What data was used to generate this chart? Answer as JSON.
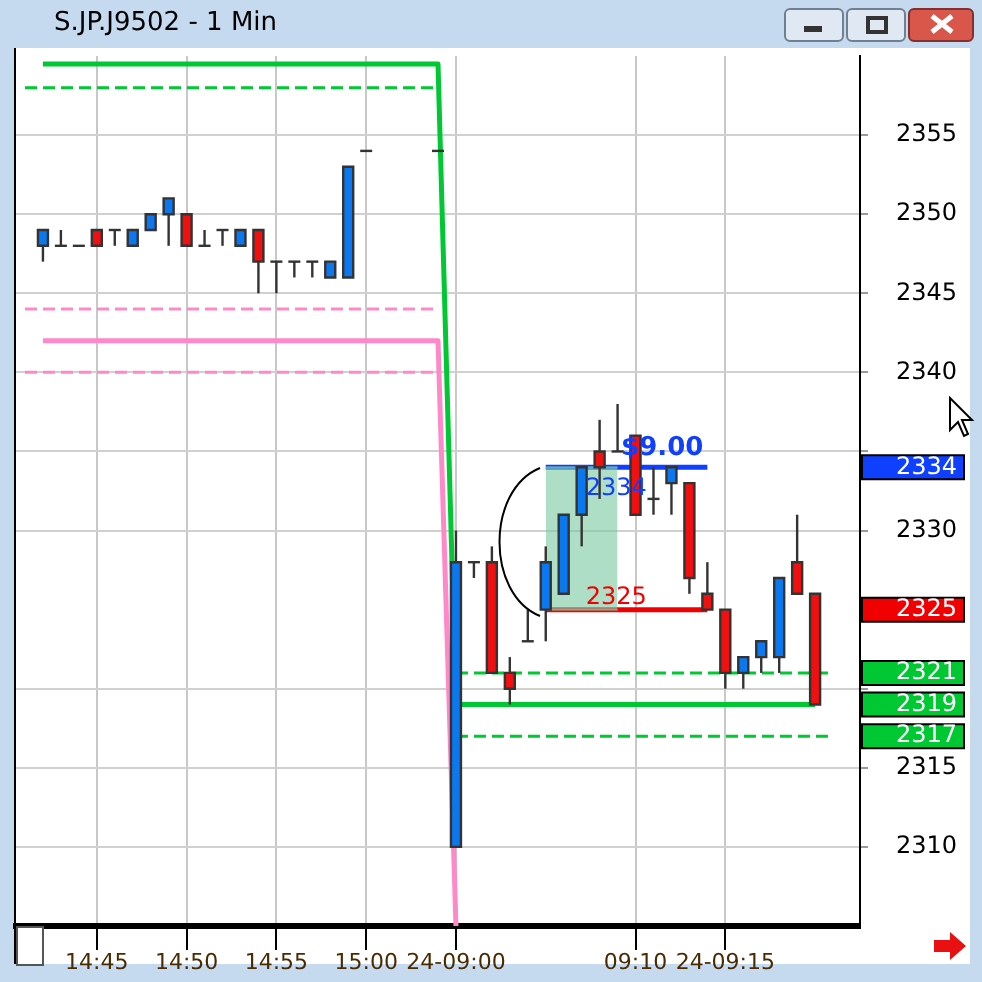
{
  "chart_data": {
    "type": "candlestick",
    "title": "S.JP.J9502 - 1 Min",
    "categories": [
      null,
      null,
      null,
      null,
      "14:45",
      null,
      null,
      null,
      null,
      "14:50",
      null,
      null,
      null,
      null,
      "14:55",
      null,
      null,
      null,
      null,
      "15:00",
      null,
      null,
      null,
      null,
      "24-09:00",
      null,
      null,
      null,
      null,
      null,
      null,
      null,
      null,
      null,
      "09:10",
      null,
      null,
      null,
      null,
      "24-09:15",
      null,
      null,
      null,
      null,
      null,
      null,
      null
    ],
    "ohlc": [
      null,
      [
        2348,
        2349,
        2347,
        2349
      ],
      [
        2348,
        2349,
        2348,
        2348
      ],
      [
        2348,
        2348,
        2348,
        2348
      ],
      [
        2349,
        2349,
        2348,
        2348
      ],
      [
        2349,
        2349,
        2348,
        2349
      ],
      [
        2348,
        2349,
        2348,
        2349
      ],
      [
        2349,
        2350,
        2349,
        2350
      ],
      [
        2350,
        2351,
        2348,
        2351
      ],
      [
        2350,
        2350,
        2348,
        2348
      ],
      [
        2348,
        2349,
        2348,
        2348
      ],
      [
        2349,
        2349,
        2348,
        2349
      ],
      [
        2348,
        2349,
        2348,
        2349
      ],
      [
        2349,
        2349,
        2345,
        2347
      ],
      [
        2347,
        2347,
        2345,
        2347
      ],
      [
        2347,
        2347,
        2346,
        2347
      ],
      [
        2347,
        2347,
        2346,
        2347
      ],
      [
        2346,
        2347,
        2346,
        2347
      ],
      [
        2346,
        2353,
        2346,
        2353
      ],
      [
        2354,
        2354,
        2354,
        2354
      ],
      null,
      null,
      null,
      [
        2354,
        2354,
        2354,
        2354
      ],
      [
        2310,
        2330,
        2310,
        2328
      ],
      [
        2328,
        2328,
        2327,
        2328
      ],
      [
        2328,
        2329,
        2321,
        2321
      ],
      [
        2321,
        2322,
        2319,
        2320
      ],
      [
        2323,
        2325,
        2323,
        2323
      ],
      [
        2325,
        2329,
        2323,
        2328
      ],
      [
        2326,
        2331,
        2326,
        2331
      ],
      [
        2331,
        2334,
        2329,
        2334
      ],
      [
        2335,
        2337,
        2332,
        2334
      ],
      [
        2335,
        2338,
        2335,
        2335
      ],
      [
        2336,
        2336,
        2331,
        2331
      ],
      [
        2332,
        2334,
        2331,
        2332
      ],
      [
        2333,
        2334,
        2331,
        2334
      ],
      [
        2333,
        2333,
        2326,
        2327
      ],
      [
        2326,
        2328,
        2325,
        2325
      ],
      [
        2325,
        2325,
        2320,
        2321
      ],
      [
        2321,
        2322,
        2320,
        2322
      ],
      [
        2322,
        2323,
        2321,
        2323
      ],
      [
        2322,
        2327,
        2321,
        2327
      ],
      [
        2328,
        2331,
        2326,
        2326
      ],
      [
        2326,
        2326,
        2319,
        2319
      ],
      null,
      null
    ],
    "colors": [
      null,
      "#0a78f0",
      "#333333",
      "#333333",
      "#f01010",
      "#333333",
      "#0a78f0",
      "#0a78f0",
      "#0a78f0",
      "#f01010",
      "#333333",
      "#333333",
      "#0a78f0",
      "#f01010",
      "#333333",
      "#333333",
      "#333333",
      "#0a78f0",
      "#0a78f0",
      "#333333",
      null,
      null,
      null,
      "#333333",
      "#0a78f0",
      "#333333",
      "#f01010",
      "#f01010",
      "#333333",
      "#0a78f0",
      "#0a78f0",
      "#0a78f0",
      "#f01010",
      "#333333",
      "#f01010",
      "#333333",
      "#0a78f0",
      "#f01010",
      "#f01010",
      "#f01010",
      "#0a78f0",
      "#0a78f0",
      "#0a78f0",
      "#f01010",
      "#f01010",
      null,
      null
    ],
    "series": [
      {
        "type": "line",
        "color": "#00c832",
        "line_style": "solid",
        "values": [
          null,
          2359.5,
          2359.5,
          2359.5,
          2359.5,
          2359.5,
          2359.5,
          2359.5,
          2359.5,
          2359.5,
          2359.5,
          2359.5,
          2359.5,
          2359.5,
          2359.5,
          2359.5,
          2359.5,
          2359.5,
          2359.5,
          2359.5,
          2359.5,
          2359.5,
          2359.5,
          2359.5,
          2319,
          2319,
          2319,
          2319,
          2319,
          2319,
          2319,
          2319,
          2319,
          2319,
          2319,
          2319,
          2319,
          2319,
          2319,
          2319,
          2319,
          2319,
          2319,
          2319,
          2319,
          null,
          null
        ]
      },
      {
        "type": "line",
        "color": "#00c832",
        "line_style": "dashed",
        "values": [
          2358,
          2358,
          2358,
          2358,
          2358,
          2358,
          2358,
          2358,
          2358,
          2358,
          2358,
          2358,
          2358,
          2358,
          2358,
          2358,
          2358,
          2358,
          2358,
          2358,
          2358,
          2358,
          2358,
          2358,
          null,
          null,
          null,
          null,
          null,
          null,
          null,
          null,
          null,
          null,
          null,
          null,
          null,
          null,
          null,
          null,
          null,
          null,
          null,
          null,
          null,
          null,
          null
        ]
      },
      {
        "type": "line",
        "color": "#00c832",
        "line_style": "dashed",
        "values": [
          null,
          null,
          null,
          null,
          null,
          null,
          null,
          null,
          null,
          null,
          null,
          null,
          null,
          null,
          null,
          null,
          null,
          null,
          null,
          null,
          null,
          null,
          null,
          null,
          2321,
          2321,
          2321,
          2321,
          2321,
          2321,
          2321,
          2321,
          2321,
          2321,
          2321,
          2321,
          2321,
          2321,
          2321,
          2321,
          2321,
          2321,
          2321,
          2321,
          2321,
          2321,
          null
        ]
      },
      {
        "type": "line",
        "color": "#00c832",
        "line_style": "dashed",
        "values": [
          null,
          null,
          null,
          null,
          null,
          null,
          null,
          null,
          null,
          null,
          null,
          null,
          null,
          null,
          null,
          null,
          null,
          null,
          null,
          null,
          null,
          null,
          null,
          null,
          2317,
          2317,
          2317,
          2317,
          2317,
          2317,
          2317,
          2317,
          2317,
          2317,
          2317,
          2317,
          2317,
          2317,
          2317,
          2317,
          2317,
          2317,
          2317,
          2317,
          2317,
          2317,
          null
        ]
      },
      {
        "type": "line",
        "color": "#ff88c8",
        "line_style": "solid",
        "values": [
          null,
          2342,
          2342,
          2342,
          2342,
          2342,
          2342,
          2342,
          2342,
          2342,
          2342,
          2342,
          2342,
          2342,
          2342,
          2342,
          2342,
          2342,
          2342,
          2342,
          2342,
          2342,
          2342,
          2342,
          2305,
          null,
          null,
          null,
          null,
          null,
          null,
          null,
          null,
          null,
          null,
          null,
          null,
          null,
          null,
          null,
          null,
          null,
          null,
          null,
          null,
          null,
          null
        ]
      },
      {
        "type": "line",
        "color": "#ff88c8",
        "line_style": "dashed",
        "values": [
          2344,
          2344,
          2344,
          2344,
          2344,
          2344,
          2344,
          2344,
          2344,
          2344,
          2344,
          2344,
          2344,
          2344,
          2344,
          2344,
          2344,
          2344,
          2344,
          2344,
          2344,
          2344,
          2344,
          2344,
          null,
          null,
          null,
          null,
          null,
          null,
          null,
          null,
          null,
          null,
          null,
          null,
          null,
          null,
          null,
          null,
          null,
          null,
          null,
          null,
          null,
          null,
          null
        ]
      },
      {
        "type": "line",
        "color": "#ff88c8",
        "line_style": "dashed",
        "values": [
          2340,
          2340,
          2340,
          2340,
          2340,
          2340,
          2340,
          2340,
          2340,
          2340,
          2340,
          2340,
          2340,
          2340,
          2340,
          2340,
          2340,
          2340,
          2340,
          2340,
          2340,
          2340,
          2340,
          2340,
          null,
          null,
          null,
          null,
          null,
          null,
          null,
          null,
          null,
          null,
          null,
          null,
          null,
          null,
          null,
          null,
          null,
          null,
          null,
          null,
          null,
          null,
          null
        ]
      },
      {
        "type": "line",
        "color": "#1040ff",
        "line_style": "solid",
        "values": [
          null,
          null,
          null,
          null,
          null,
          null,
          null,
          null,
          null,
          null,
          null,
          null,
          null,
          null,
          null,
          null,
          null,
          null,
          null,
          null,
          null,
          null,
          null,
          null,
          null,
          null,
          null,
          null,
          null,
          2334,
          2334,
          2334,
          2334,
          2334,
          2334,
          2334,
          2334,
          2334,
          2334,
          null,
          null,
          null,
          null,
          null,
          null,
          null,
          null
        ],
        "lower": [
          null,
          null,
          null,
          null,
          null,
          null,
          null,
          null,
          null,
          null,
          null,
          null,
          null,
          null,
          null,
          null,
          null,
          null,
          null,
          null,
          null,
          null,
          null,
          null,
          null,
          null,
          null,
          null,
          null,
          2325,
          2325,
          2325,
          2325,
          2325,
          null,
          null,
          null,
          null,
          null,
          null,
          null,
          null,
          null,
          null,
          null,
          null,
          null
        ],
        "upper": [
          null,
          null,
          null,
          null,
          null,
          null,
          null,
          null,
          null,
          null,
          null,
          null,
          null,
          null,
          null,
          null,
          null,
          null,
          null,
          null,
          null,
          null,
          null,
          null,
          null,
          null,
          null,
          null,
          null,
          2334,
          2334,
          2334,
          2334,
          2334,
          null,
          null,
          null,
          null,
          null,
          null,
          null,
          null,
          null,
          null,
          null,
          null,
          null
        ]
      },
      {
        "type": "line",
        "color": "#f00000",
        "line_style": "solid",
        "values": [
          null,
          null,
          null,
          null,
          null,
          null,
          null,
          null,
          null,
          null,
          null,
          null,
          null,
          null,
          null,
          null,
          null,
          null,
          null,
          null,
          null,
          null,
          null,
          null,
          null,
          null,
          null,
          null,
          null,
          2325,
          2325,
          2325,
          2325,
          2325,
          2325,
          2325,
          2325,
          2325,
          2325,
          null,
          null,
          null,
          null,
          null,
          null,
          null,
          null
        ]
      }
    ],
    "annotations": [
      {
        "text": "$9.00",
        "y": 2334
      },
      {
        "text": "2334",
        "y": 2334
      },
      {
        "text": "2325",
        "y": 2325
      }
    ],
    "ylim": [
      2305,
      2360
    ],
    "yticks": [
      2310,
      2315,
      2317,
      2319,
      {
        "value": 2320,
        "label": null
      },
      2321,
      2325,
      2330,
      2334,
      {
        "value": 2335,
        "label": null
      },
      2340,
      2345,
      2350,
      2355
    ],
    "grid": true
  }
}
